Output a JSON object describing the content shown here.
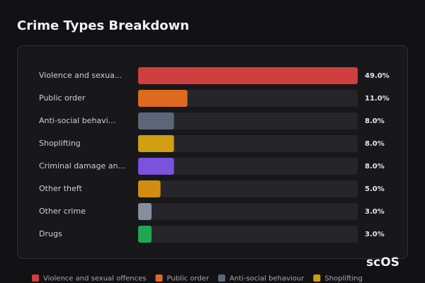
{
  "chart_data": {
    "type": "hbar",
    "title": "Crime Types Breakdown",
    "categories": [
      "Violence and sexua...",
      "Public order",
      "Anti-social behavi...",
      "Shoplifting",
      "Criminal damage an...",
      "Other theft",
      "Other crime",
      "Drugs"
    ],
    "values": [
      49,
      11,
      8,
      8,
      8,
      5,
      3,
      3
    ],
    "value_labels": [
      "49.0%",
      "11.0%",
      "8.0%",
      "8.0%",
      "8.0%",
      "5.0%",
      "3.0%",
      "3.0%"
    ],
    "colors": [
      "#cf3f3f",
      "#de6a1f",
      "#5c6678",
      "#d09e12",
      "#7a52dc",
      "#d18c12",
      "#858e9e",
      "#20a552"
    ],
    "legend": [
      "Violence and sexual offences",
      "Public order",
      "Anti-social behaviour",
      "Shoplifting"
    ]
  },
  "watermark": "scOS"
}
